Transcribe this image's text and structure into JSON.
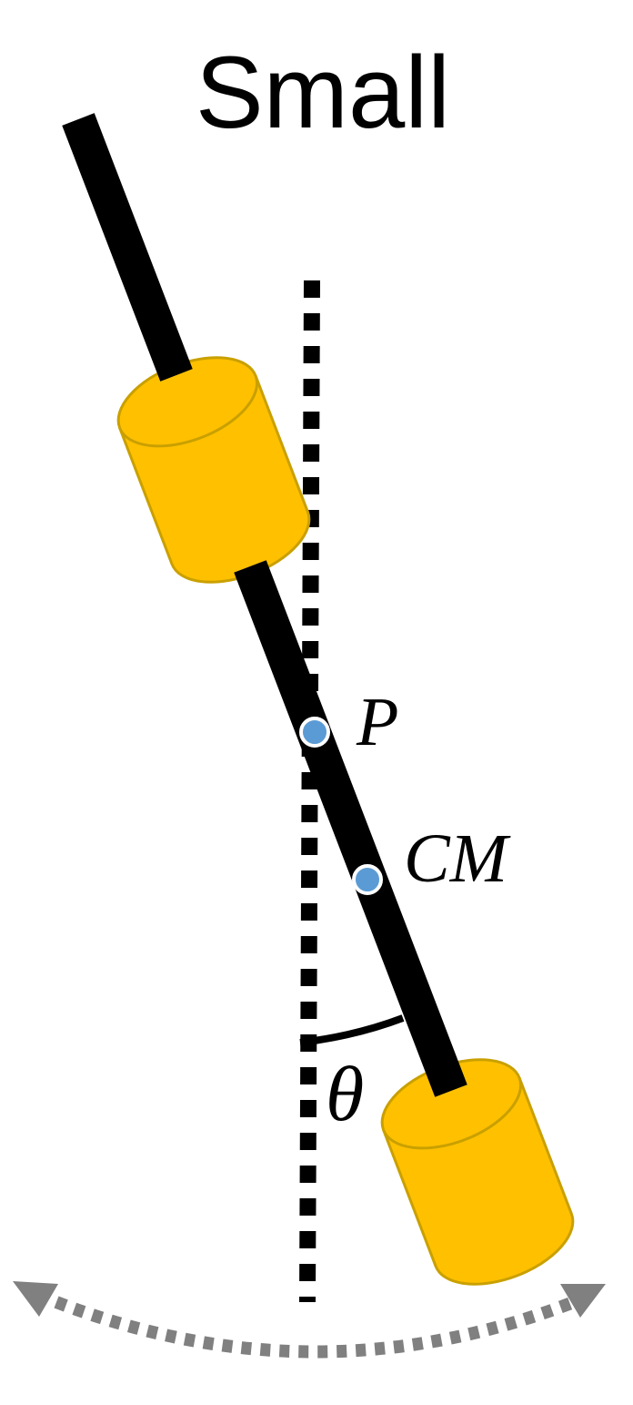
{
  "title": "Small",
  "labels": {
    "pivot": "P",
    "center_of_mass": "CM",
    "angle": "θ"
  },
  "colors": {
    "rod": "#000000",
    "mass_fill": "#FFC000",
    "mass_stroke": "#C9A000",
    "point_fill": "#5B9BD5",
    "point_stroke": "#FFFFFF",
    "vertical_line": "#000000",
    "swing_arrow": "#7F7F7F"
  },
  "icons": {
    "swing": "double-headed-dotted-arc-arrow"
  }
}
